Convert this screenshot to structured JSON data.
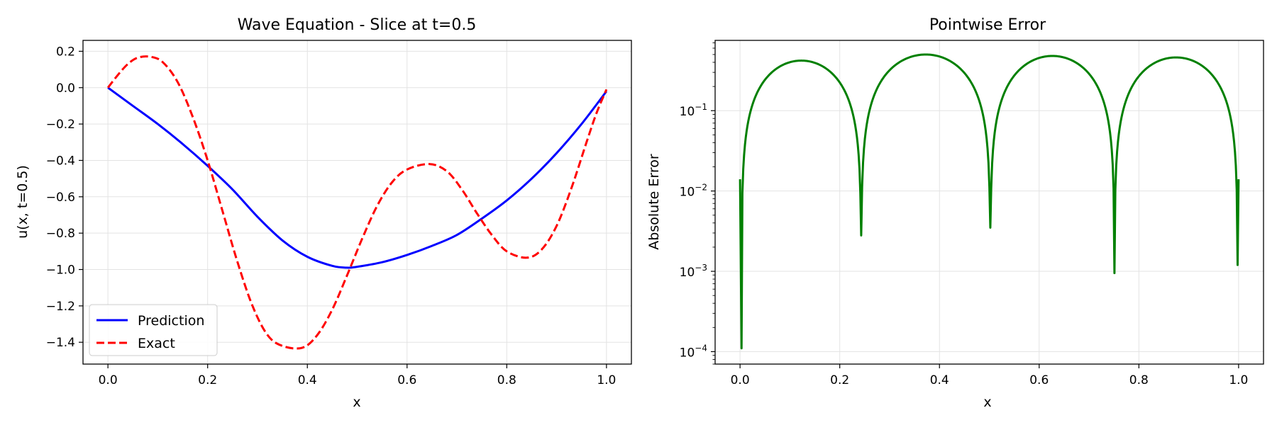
{
  "chart_data": [
    {
      "type": "line",
      "title": "Wave Equation - Slice at t=0.5",
      "xlabel": "x",
      "ylabel": "u(x, t=0.5)",
      "xlim": [
        -0.05,
        1.05
      ],
      "ylim": [
        -1.52,
        0.26
      ],
      "xticks": [
        0.0,
        0.2,
        0.4,
        0.6,
        0.8,
        1.0
      ],
      "xtick_labels": [
        "0.0",
        "0.2",
        "0.4",
        "0.6",
        "0.8",
        "1.0"
      ],
      "yticks": [
        0.2,
        0.0,
        -0.2,
        -0.4,
        -0.6,
        -0.8,
        -1.0,
        -1.2,
        -1.4
      ],
      "ytick_labels": [
        "0.2",
        "0.0",
        "−0.2",
        "−0.4",
        "−0.6",
        "−0.8",
        "−1.0",
        "−1.2",
        "−1.4"
      ],
      "grid": true,
      "legend": "lower-left",
      "series": [
        {
          "name": "Prediction",
          "color": "#0000ff",
          "style": "solid",
          "x": [
            0.0,
            0.05,
            0.1,
            0.15,
            0.2,
            0.25,
            0.3,
            0.35,
            0.4,
            0.45,
            0.48,
            0.5,
            0.55,
            0.6,
            0.65,
            0.7,
            0.75,
            0.8,
            0.85,
            0.9,
            0.95,
            1.0
          ],
          "y": [
            0.0,
            -0.1,
            -0.2,
            -0.31,
            -0.43,
            -0.56,
            -0.71,
            -0.84,
            -0.93,
            -0.98,
            -0.99,
            -0.985,
            -0.96,
            -0.92,
            -0.87,
            -0.81,
            -0.72,
            -0.62,
            -0.5,
            -0.36,
            -0.2,
            -0.02
          ]
        },
        {
          "name": "Exact",
          "color": "#ff0000",
          "style": "dashed",
          "x": [
            0.0,
            0.02,
            0.04,
            0.06,
            0.085,
            0.11,
            0.14,
            0.17,
            0.2,
            0.23,
            0.26,
            0.29,
            0.32,
            0.35,
            0.39,
            0.42,
            0.45,
            0.48,
            0.51,
            0.54,
            0.57,
            0.6,
            0.645,
            0.68,
            0.71,
            0.74,
            0.77,
            0.8,
            0.84,
            0.87,
            0.9,
            0.93,
            0.96,
            0.98,
            1.0
          ],
          "y": [
            0.0,
            0.07,
            0.13,
            0.165,
            0.17,
            0.14,
            0.03,
            -0.16,
            -0.4,
            -0.68,
            -0.96,
            -1.2,
            -1.36,
            -1.42,
            -1.43,
            -1.36,
            -1.22,
            -1.03,
            -0.83,
            -0.65,
            -0.52,
            -0.45,
            -0.42,
            -0.46,
            -0.56,
            -0.69,
            -0.81,
            -0.9,
            -0.935,
            -0.89,
            -0.76,
            -0.55,
            -0.3,
            -0.14,
            -0.01
          ]
        }
      ]
    },
    {
      "type": "line",
      "title": "Pointwise Error",
      "xlabel": "x",
      "ylabel": "Absolute Error",
      "xlim": [
        -0.05,
        1.05
      ],
      "ylog": true,
      "ylim": [
        7e-05,
        0.75
      ],
      "xticks": [
        0.0,
        0.2,
        0.4,
        0.6,
        0.8,
        1.0
      ],
      "xtick_labels": [
        "0.0",
        "0.2",
        "0.4",
        "0.6",
        "0.8",
        "1.0"
      ],
      "yticks": [
        0.1,
        0.01,
        0.001,
        0.0001
      ],
      "ytick_bases": [
        "10",
        "10",
        "10",
        "10"
      ],
      "ytick_exponents": [
        "−1",
        "−2",
        "−3",
        "−4"
      ],
      "grid": true,
      "series": [
        {
          "name": "",
          "color": "#008000",
          "style": "solid",
          "arches": [
            {
              "start": 0.003,
              "end": 0.243,
              "peak": 0.42
            },
            {
              "start": 0.243,
              "end": 0.502,
              "peak": 0.5
            },
            {
              "start": 0.502,
              "end": 0.751,
              "peak": 0.48
            },
            {
              "start": 0.751,
              "end": 0.998,
              "peak": 0.46
            }
          ],
          "minima": [
            {
              "x": 0.003,
              "y": 0.00011
            },
            {
              "x": 0.243,
              "y": 0.0028
            },
            {
              "x": 0.502,
              "y": 0.0035
            },
            {
              "x": 0.751,
              "y": 0.00095
            },
            {
              "x": 0.998,
              "y": 0.0012
            }
          ],
          "end_points": [
            {
              "x": 0.0,
              "y": 0.014
            },
            {
              "x": 1.0,
              "y": 0.014
            }
          ]
        }
      ]
    }
  ]
}
